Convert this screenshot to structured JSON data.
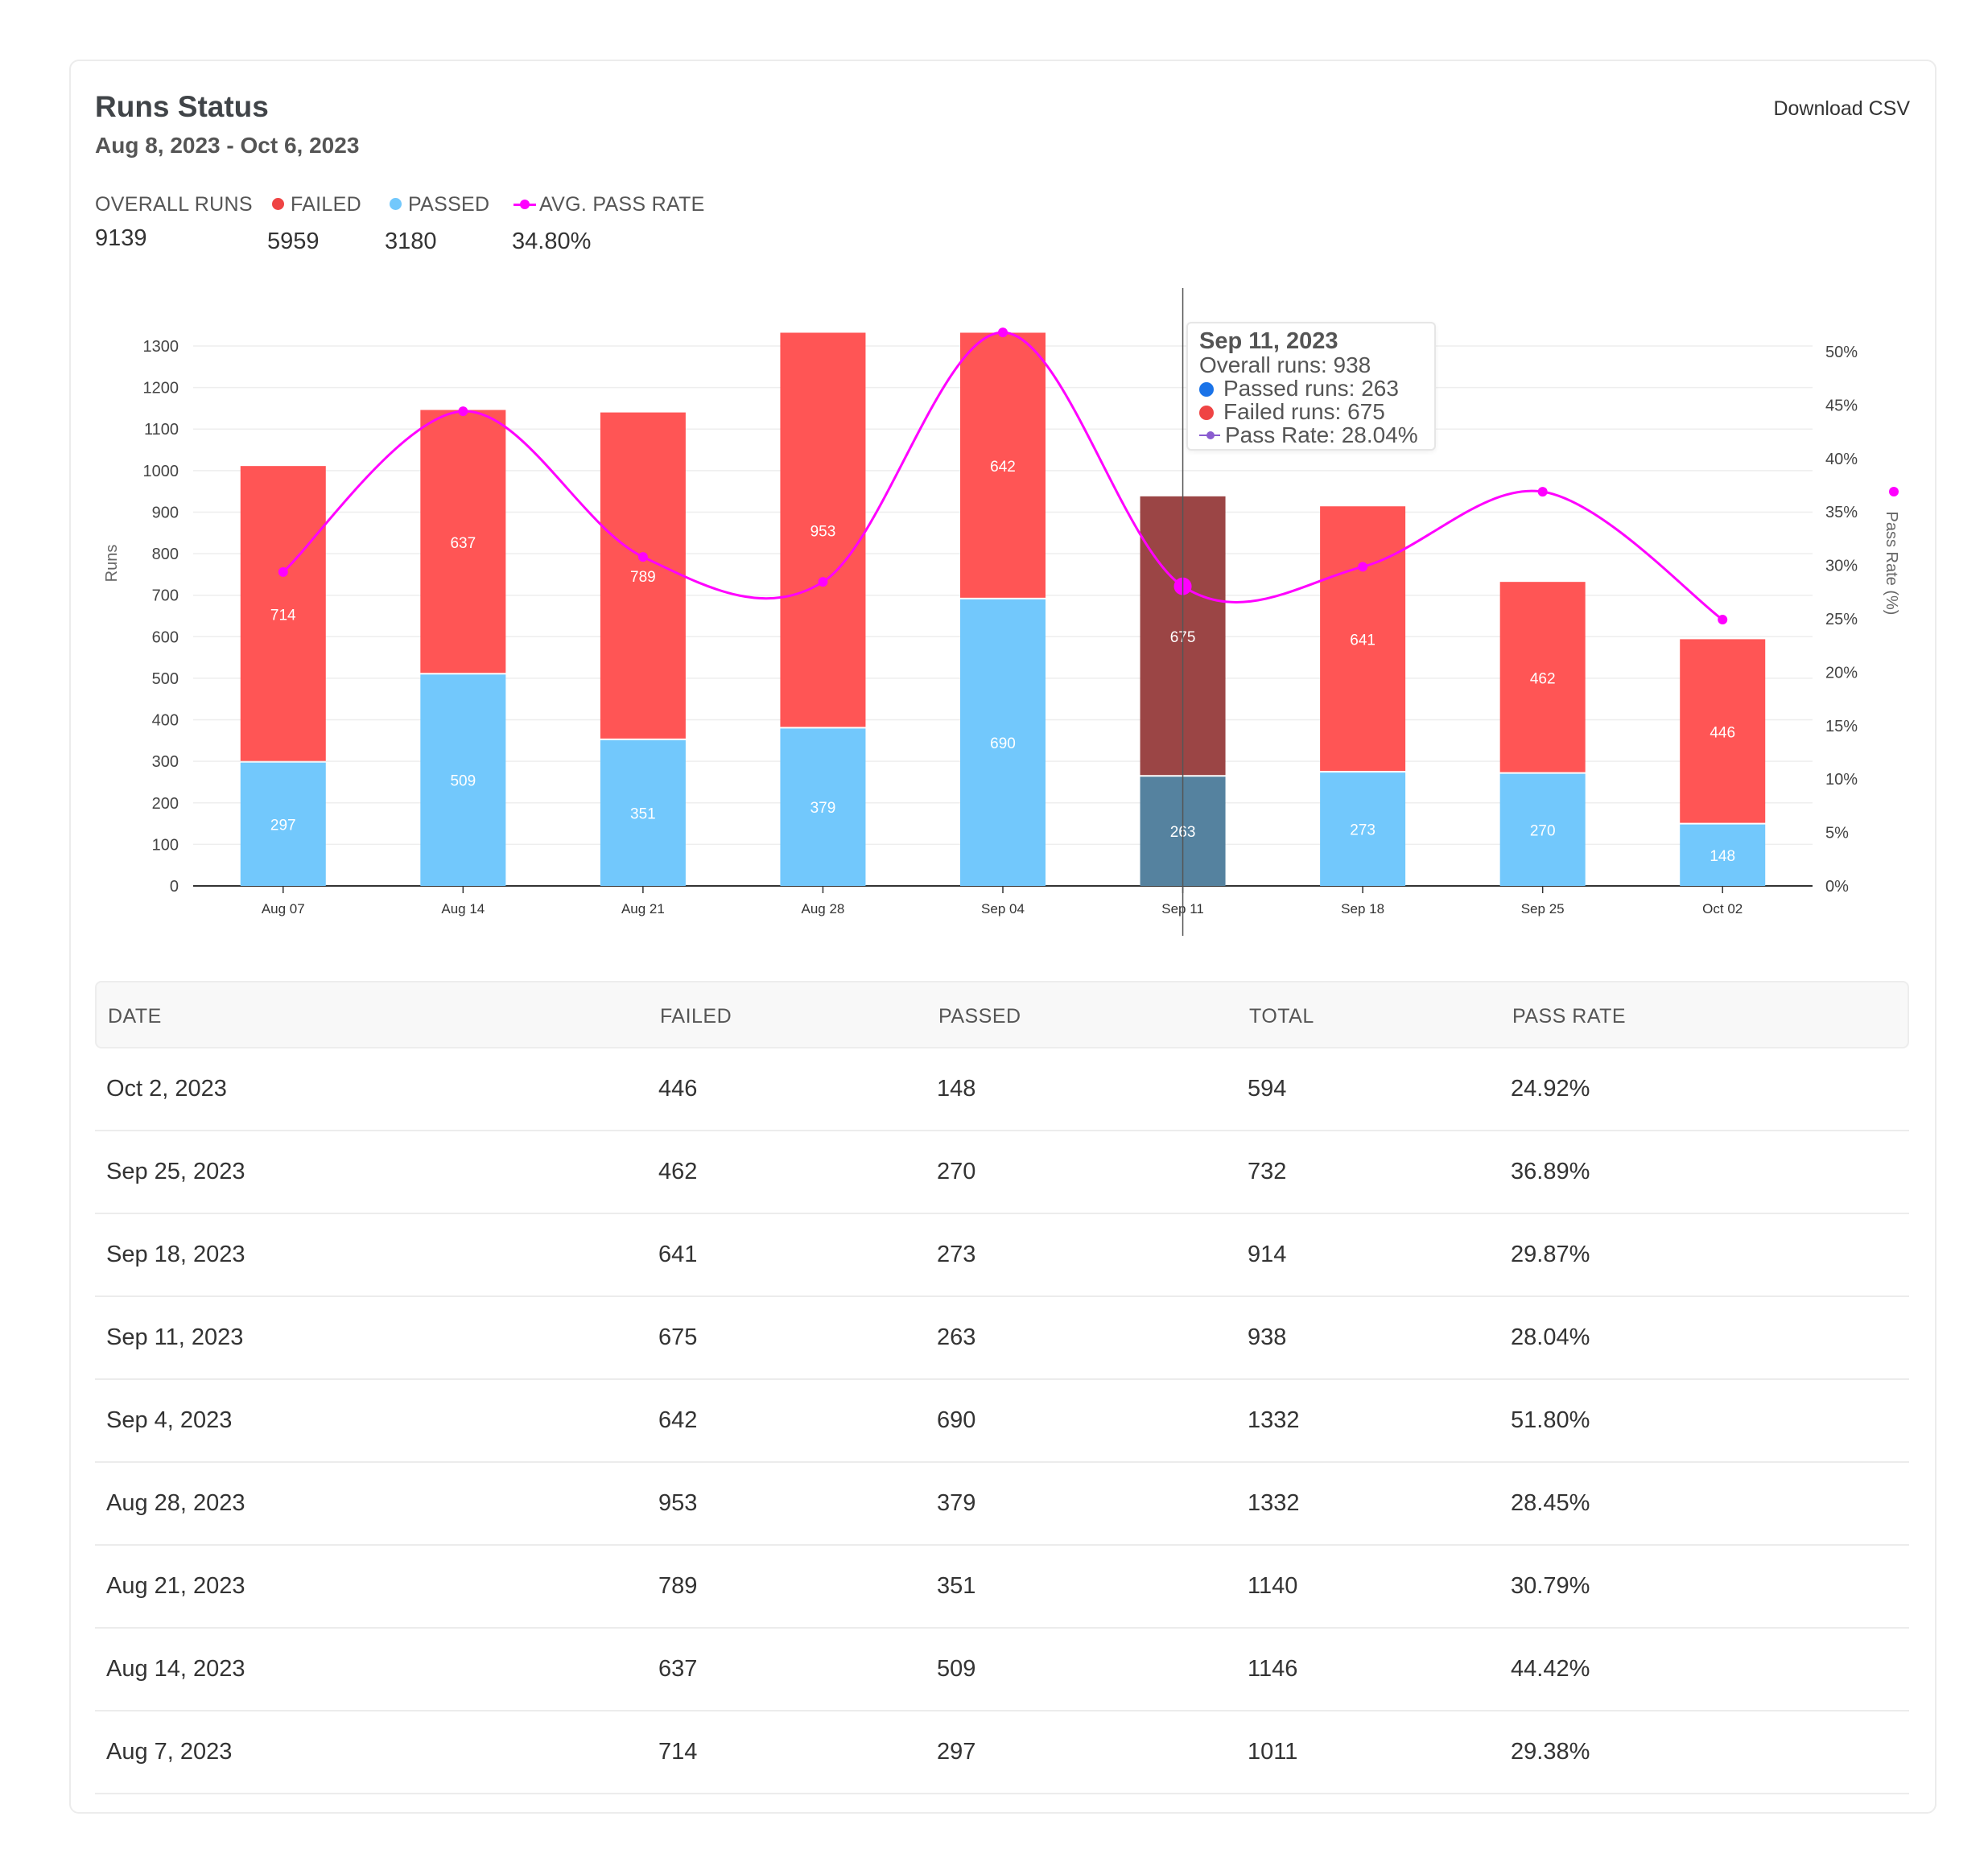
{
  "header": {
    "title": "Runs Status",
    "date_range": "Aug 8, 2023 - Oct 6, 2023",
    "download_label": "Download CSV"
  },
  "summary": {
    "overall_label": "OVERALL RUNS",
    "overall_value": "9139",
    "failed_label": "FAILED",
    "failed_value": "5959",
    "passed_label": "PASSED",
    "passed_value": "3180",
    "rate_label": "AVG. PASS RATE",
    "rate_value": "34.80%"
  },
  "colors": {
    "failed": "#ff5555",
    "passed": "#72c8fc",
    "failed_highlight": "#9b4545",
    "passed_highlight": "#55829f",
    "pass_rate_line": "#ff00ff",
    "tooltip_passed_dot": "#1a73e8",
    "tooltip_failed_dot": "#ef4444"
  },
  "chart_data": {
    "type": "bar",
    "stacked": true,
    "categories": [
      "Aug 07",
      "Aug 14",
      "Aug 21",
      "Aug 28",
      "Sep 04",
      "Sep 11",
      "Sep 18",
      "Sep 25",
      "Oct 02"
    ],
    "series": [
      {
        "name": "PASSED",
        "values": [
          297,
          509,
          351,
          379,
          690,
          263,
          273,
          270,
          148
        ]
      },
      {
        "name": "FAILED",
        "values": [
          714,
          637,
          789,
          953,
          642,
          675,
          641,
          462,
          446
        ]
      }
    ],
    "line_series": {
      "name": "Pass Rate (%)",
      "values": [
        29.38,
        44.42,
        30.79,
        28.45,
        51.8,
        28.04,
        29.87,
        36.89,
        24.92
      ]
    },
    "ylabel": "Runs",
    "y2label": "Pass Rate (%)",
    "ylim": [
      0,
      1300
    ],
    "yticks": [
      "0",
      "100",
      "200",
      "300",
      "400",
      "500",
      "600",
      "700",
      "800",
      "900",
      "1000",
      "1100",
      "1200",
      "1300"
    ],
    "y2lim": [
      0,
      50
    ],
    "y2ticks": [
      "0%",
      "5%",
      "10%",
      "15%",
      "20%",
      "25%",
      "30%",
      "35%",
      "40%",
      "45%",
      "50%"
    ],
    "highlighted_index": 5,
    "grid": true
  },
  "tooltip": {
    "title": "Sep 11, 2023",
    "overall": "Overall runs: 938",
    "passed": "Passed runs: 263",
    "failed": "Failed runs: 675",
    "rate": "Pass Rate: 28.04%"
  },
  "table": {
    "headers": [
      "DATE",
      "FAILED",
      "PASSED",
      "TOTAL",
      "PASS RATE"
    ],
    "rows": [
      [
        "Oct 2, 2023",
        "446",
        "148",
        "594",
        "24.92%"
      ],
      [
        "Sep 25, 2023",
        "462",
        "270",
        "732",
        "36.89%"
      ],
      [
        "Sep 18, 2023",
        "641",
        "273",
        "914",
        "29.87%"
      ],
      [
        "Sep 11, 2023",
        "675",
        "263",
        "938",
        "28.04%"
      ],
      [
        "Sep 4, 2023",
        "642",
        "690",
        "1332",
        "51.80%"
      ],
      [
        "Aug 28, 2023",
        "953",
        "379",
        "1332",
        "28.45%"
      ],
      [
        "Aug 21, 2023",
        "789",
        "351",
        "1140",
        "30.79%"
      ],
      [
        "Aug 14, 2023",
        "637",
        "509",
        "1146",
        "44.42%"
      ],
      [
        "Aug 7, 2023",
        "714",
        "297",
        "1011",
        "29.38%"
      ]
    ]
  }
}
